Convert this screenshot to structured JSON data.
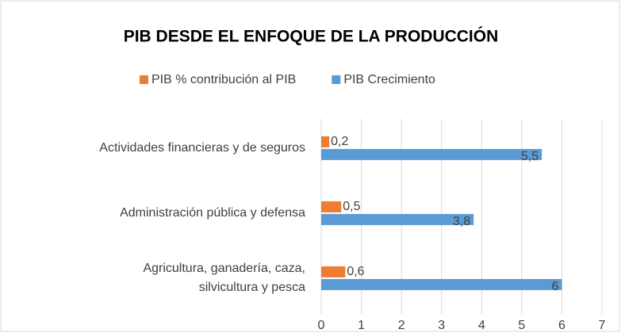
{
  "chart_data": {
    "type": "hbar",
    "title": "PIB DESDE EL ENFOQUE DE LA PRODUCCIÓN",
    "categories": [
      "Actividades financieras y de seguros",
      "Administración pública y defensa",
      "Agricultura, ganadería, caza, silvicultura y pesca"
    ],
    "series": [
      {
        "name": "PIB % contribución al PIB",
        "color": "#ed7d31",
        "values": [
          0.2,
          0.5,
          0.6
        ],
        "value_labels": [
          "0,2",
          "0,5",
          "0,6"
        ]
      },
      {
        "name": "PIB Crecimiento",
        "color": "#5b9bd5",
        "values": [
          5.5,
          3.8,
          6
        ],
        "value_labels": [
          "5,5",
          "3,8",
          "6"
        ]
      }
    ],
    "xlim": [
      0,
      7
    ],
    "xticks": [
      0,
      1,
      2,
      3,
      4,
      5,
      6,
      7
    ],
    "grid": true,
    "legend": "top"
  }
}
